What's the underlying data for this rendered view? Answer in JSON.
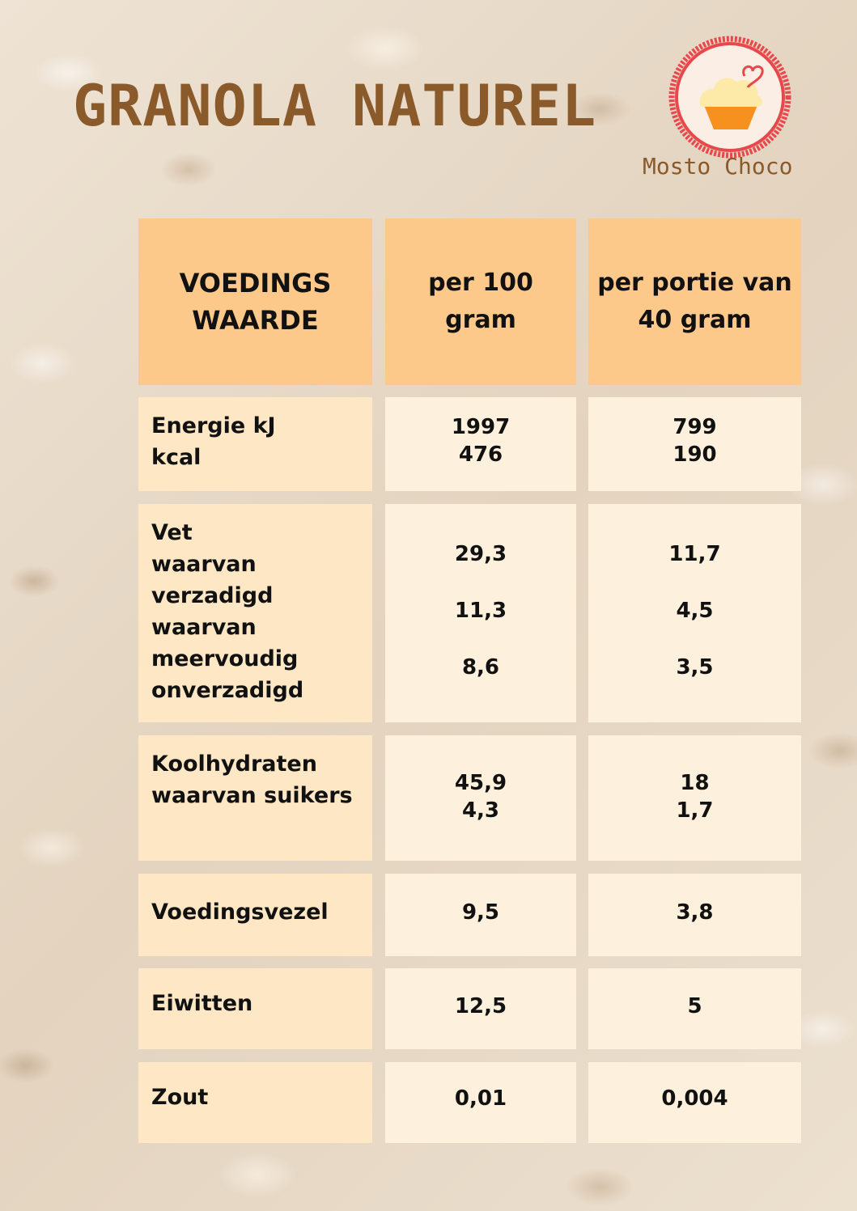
{
  "title": "GRANOLA NATUREL",
  "brand": "Mosto Choco",
  "colors": {
    "title": "#8a5a2b",
    "header": "#fdc98a",
    "label_cell": "#fde7c5",
    "value_cell": "#fdf0dc",
    "logo_ring": "#e8484b"
  },
  "table": {
    "headers": {
      "nutrient": [
        "VOEDINGS",
        "WAARDE"
      ],
      "per100": [
        "per 100",
        "gram"
      ],
      "portion": [
        "per portie van",
        "40 gram"
      ]
    },
    "rows": [
      {
        "label": [
          "Energie kJ",
          "kcal"
        ],
        "per100": [
          "1997",
          "476"
        ],
        "portion": [
          "799",
          "190"
        ]
      },
      {
        "label": [
          "Vet",
          "waarvan",
          "verzadigd",
          "waarvan",
          "meervoudig",
          "onverzadigd"
        ],
        "per100": [
          "29,3",
          "11,3",
          "8,6"
        ],
        "portion": [
          "11,7",
          "4,5",
          "3,5"
        ]
      },
      {
        "label": [
          "Koolhydraten",
          "waarvan suikers"
        ],
        "per100": [
          "45,9",
          "4,3"
        ],
        "portion": [
          "18",
          "1,7"
        ]
      },
      {
        "label": [
          "Voedingsvezel"
        ],
        "per100": [
          "9,5"
        ],
        "portion": [
          "3,8"
        ]
      },
      {
        "label": [
          "Eiwitten"
        ],
        "per100": [
          "12,5"
        ],
        "portion": [
          "5"
        ]
      },
      {
        "label": [
          "Zout"
        ],
        "per100": [
          "0,01"
        ],
        "portion": [
          "0,004"
        ]
      }
    ]
  }
}
